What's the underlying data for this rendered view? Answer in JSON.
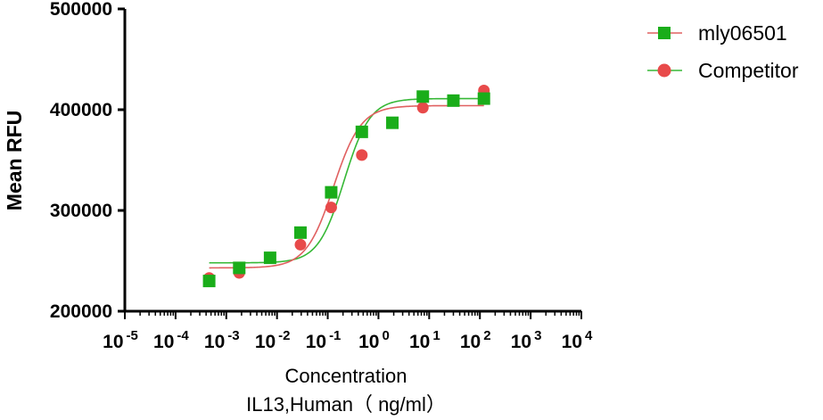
{
  "chart_data": {
    "type": "scatter",
    "title": "",
    "xlabel": "Concentration",
    "xlabel_sub": "IL13,Human（ ng/ml）",
    "ylabel": "Mean RFU",
    "xscale": "log10",
    "xlim": [
      1e-05,
      10000.0
    ],
    "ylim": [
      200000,
      500000
    ],
    "x_ticks": [
      {
        "base": "10",
        "exp": "-5"
      },
      {
        "base": "10",
        "exp": "-4"
      },
      {
        "base": "10",
        "exp": "-3"
      },
      {
        "base": "10",
        "exp": "-2"
      },
      {
        "base": "10",
        "exp": "-1"
      },
      {
        "base": "10",
        "exp": "0"
      },
      {
        "base": "10",
        "exp": "1"
      },
      {
        "base": "10",
        "exp": "2"
      },
      {
        "base": "10",
        "exp": "3"
      },
      {
        "base": "10",
        "exp": "4"
      }
    ],
    "y_ticks": [
      "200000",
      "300000",
      "400000",
      "500000"
    ],
    "legend_position": "top-right",
    "series": [
      {
        "name": "mly06501",
        "marker": "square",
        "color": "#1aad1a",
        "curve_color": "#36b836",
        "x": [
          0.00046,
          0.0018,
          0.0073,
          0.029,
          0.117,
          0.47,
          1.88,
          7.5,
          30,
          120
        ],
        "y": [
          230000,
          243000,
          253000,
          278000,
          318000,
          378000,
          387000,
          413000,
          409000,
          411000
        ],
        "fit": {
          "bottom": 248000,
          "top": 411000,
          "ec50": 0.21,
          "hill": 1.7
        }
      },
      {
        "name": "Competitor",
        "marker": "circle",
        "color": "#e84a4a",
        "curve_color": "#e06060",
        "x": [
          0.00046,
          0.0018,
          0.029,
          0.117,
          0.47,
          7.5,
          120
        ],
        "y": [
          233000,
          238000,
          266000,
          303000,
          355000,
          402000,
          419000
        ],
        "fit": {
          "bottom": 243000,
          "top": 404000,
          "ec50": 0.13,
          "hill": 1.6
        }
      }
    ]
  }
}
